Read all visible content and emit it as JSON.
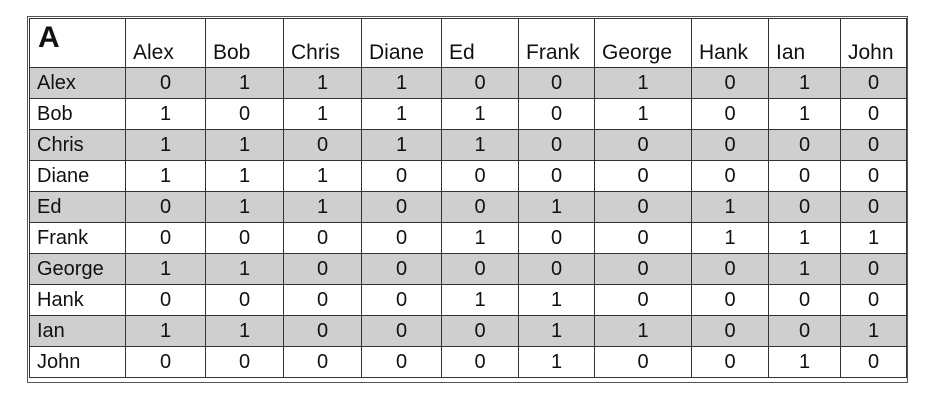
{
  "table": {
    "corner_label": "A",
    "columns": [
      "Alex",
      "Bob",
      "Chris",
      "Diane",
      "Ed",
      "Frank",
      "George",
      "Hank",
      "Ian",
      "John"
    ],
    "rows": [
      {
        "label": "Alex",
        "values": [
          "0",
          "1",
          "1",
          "1",
          "0",
          "0",
          "1",
          "0",
          "1",
          "0"
        ]
      },
      {
        "label": "Bob",
        "values": [
          "1",
          "0",
          "1",
          "1",
          "1",
          "0",
          "1",
          "0",
          "1",
          "0"
        ]
      },
      {
        "label": "Chris",
        "values": [
          "1",
          "1",
          "0",
          "1",
          "1",
          "0",
          "0",
          "0",
          "0",
          "0"
        ]
      },
      {
        "label": "Diane",
        "values": [
          "1",
          "1",
          "1",
          "0",
          "0",
          "0",
          "0",
          "0",
          "0",
          "0"
        ]
      },
      {
        "label": "Ed",
        "values": [
          "0",
          "1",
          "1",
          "0",
          "0",
          "1",
          "0",
          "1",
          "0",
          "0"
        ]
      },
      {
        "label": "Frank",
        "values": [
          "0",
          "0",
          "0",
          "0",
          "1",
          "0",
          "0",
          "1",
          "1",
          "1"
        ]
      },
      {
        "label": "George",
        "values": [
          "1",
          "1",
          "0",
          "0",
          "0",
          "0",
          "0",
          "0",
          "1",
          "0"
        ]
      },
      {
        "label": "Hank",
        "values": [
          "0",
          "0",
          "0",
          "0",
          "1",
          "1",
          "0",
          "0",
          "0",
          "0"
        ]
      },
      {
        "label": "Ian",
        "values": [
          "1",
          "1",
          "0",
          "0",
          "0",
          "1",
          "1",
          "0",
          "0",
          "1"
        ]
      },
      {
        "label": "John",
        "values": [
          "0",
          "0",
          "0",
          "0",
          "0",
          "1",
          "0",
          "0",
          "1",
          "0"
        ]
      }
    ]
  },
  "colors": {
    "shaded_row": "#cfcfcf",
    "plain_row": "#ffffff",
    "grid_line": "#333333",
    "text": "#111111"
  }
}
